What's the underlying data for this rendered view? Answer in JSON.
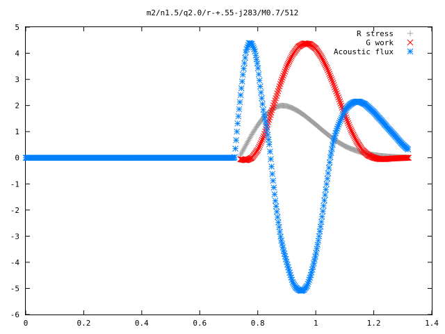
{
  "chart_data": {
    "type": "scatter",
    "title": "m2/n1.5/q2.0/r-+.55-j283/M0.7/512",
    "xlabel": "",
    "ylabel": "",
    "xlim": [
      0,
      1.4
    ],
    "ylim": [
      -6,
      5
    ],
    "x_ticks": [
      "0",
      "0.2",
      "0.4",
      "0.6",
      "0.8",
      "1",
      "1.2",
      "1.4"
    ],
    "y_ticks": [
      "5",
      "4",
      "3",
      "2",
      "1",
      "0",
      "-1",
      "-2",
      "-3",
      "-4",
      "-5",
      "-6"
    ],
    "grid": false,
    "legend_position": "top-right",
    "series": [
      {
        "name": "R stress",
        "marker": "plus",
        "color": "#a0a0a0",
        "x": [
          0.74,
          0.76,
          0.78,
          0.8,
          0.82,
          0.84,
          0.86,
          0.88,
          0.9,
          0.92,
          0.94,
          0.96,
          0.98,
          1.0,
          1.02,
          1.04,
          1.06,
          1.08,
          1.1,
          1.12,
          1.14,
          1.16,
          1.18,
          1.2,
          1.22,
          1.24,
          1.26,
          1.28,
          1.3,
          1.32
        ],
        "y": [
          0.1,
          0.5,
          0.9,
          1.25,
          1.55,
          1.78,
          1.93,
          2.0,
          1.98,
          1.9,
          1.78,
          1.63,
          1.45,
          1.27,
          1.08,
          0.9,
          0.73,
          0.58,
          0.45,
          0.35,
          0.27,
          0.2,
          0.15,
          0.11,
          0.08,
          0.06,
          0.04,
          0.03,
          0.02,
          0.01
        ]
      },
      {
        "name": "G work",
        "marker": "cross",
        "color": "#ff0000",
        "x": [
          0.74,
          0.76,
          0.78,
          0.8,
          0.82,
          0.84,
          0.86,
          0.88,
          0.9,
          0.92,
          0.94,
          0.96,
          0.98,
          1.0,
          1.02,
          1.04,
          1.06,
          1.08,
          1.1,
          1.12,
          1.14,
          1.16,
          1.18,
          1.2,
          1.22,
          1.24,
          1.26,
          1.28,
          1.3,
          1.32
        ],
        "y": [
          -0.05,
          -0.1,
          0.0,
          0.3,
          0.8,
          1.5,
          2.2,
          2.9,
          3.5,
          3.95,
          4.25,
          4.38,
          4.35,
          4.18,
          3.85,
          3.4,
          2.85,
          2.25,
          1.65,
          1.1,
          0.65,
          0.3,
          0.1,
          0.0,
          -0.05,
          -0.05,
          -0.03,
          -0.02,
          -0.01,
          0.0
        ]
      },
      {
        "name": "Acoustic flux",
        "marker": "star",
        "color": "#0080ff",
        "x": [
          0.0,
          0.02,
          0.04,
          0.06,
          0.08,
          0.1,
          0.12,
          0.14,
          0.16,
          0.18,
          0.2,
          0.22,
          0.24,
          0.26,
          0.28,
          0.3,
          0.32,
          0.34,
          0.36,
          0.38,
          0.4,
          0.42,
          0.44,
          0.46,
          0.48,
          0.5,
          0.52,
          0.54,
          0.56,
          0.58,
          0.6,
          0.62,
          0.64,
          0.66,
          0.68,
          0.7,
          0.72,
          0.73,
          0.74,
          0.75,
          0.76,
          0.77,
          0.78,
          0.79,
          0.8,
          0.81,
          0.82,
          0.83,
          0.84,
          0.85,
          0.86,
          0.87,
          0.88,
          0.89,
          0.9,
          0.91,
          0.92,
          0.93,
          0.94,
          0.95,
          0.96,
          0.97,
          0.98,
          0.99,
          1.0,
          1.01,
          1.02,
          1.03,
          1.04,
          1.05,
          1.06,
          1.07,
          1.08,
          1.09,
          1.1,
          1.11,
          1.12,
          1.13,
          1.14,
          1.15,
          1.16,
          1.17,
          1.18,
          1.19,
          1.2,
          1.21,
          1.22,
          1.23,
          1.24,
          1.25,
          1.26,
          1.27,
          1.28,
          1.29,
          1.3,
          1.31,
          1.32
        ],
        "y": [
          0,
          0,
          0,
          0,
          0,
          0,
          0,
          0,
          0,
          0,
          0,
          0,
          0,
          0,
          0,
          0,
          0,
          0,
          0,
          0,
          0,
          0,
          0,
          0,
          0,
          0,
          0,
          0,
          0,
          0,
          0,
          0,
          0,
          0,
          0,
          0,
          0,
          1.25,
          2.3,
          3.3,
          4.1,
          4.4,
          4.35,
          4.1,
          3.5,
          2.6,
          1.75,
          1.2,
          0.5,
          -0.6,
          -1.6,
          -2.4,
          -3.1,
          -3.6,
          -4.0,
          -4.4,
          -4.75,
          -4.95,
          -5.05,
          -5.1,
          -5.05,
          -4.9,
          -4.6,
          -4.2,
          -3.7,
          -3.1,
          -2.4,
          -1.6,
          -0.8,
          0.0,
          0.6,
          1.0,
          1.3,
          1.55,
          1.8,
          1.95,
          2.05,
          2.12,
          2.15,
          2.15,
          2.1,
          2.05,
          1.95,
          1.85,
          1.75,
          1.62,
          1.5,
          1.38,
          1.25,
          1.12,
          1.0,
          0.88,
          0.75,
          0.62,
          0.5,
          0.4,
          0.3
        ]
      }
    ]
  }
}
